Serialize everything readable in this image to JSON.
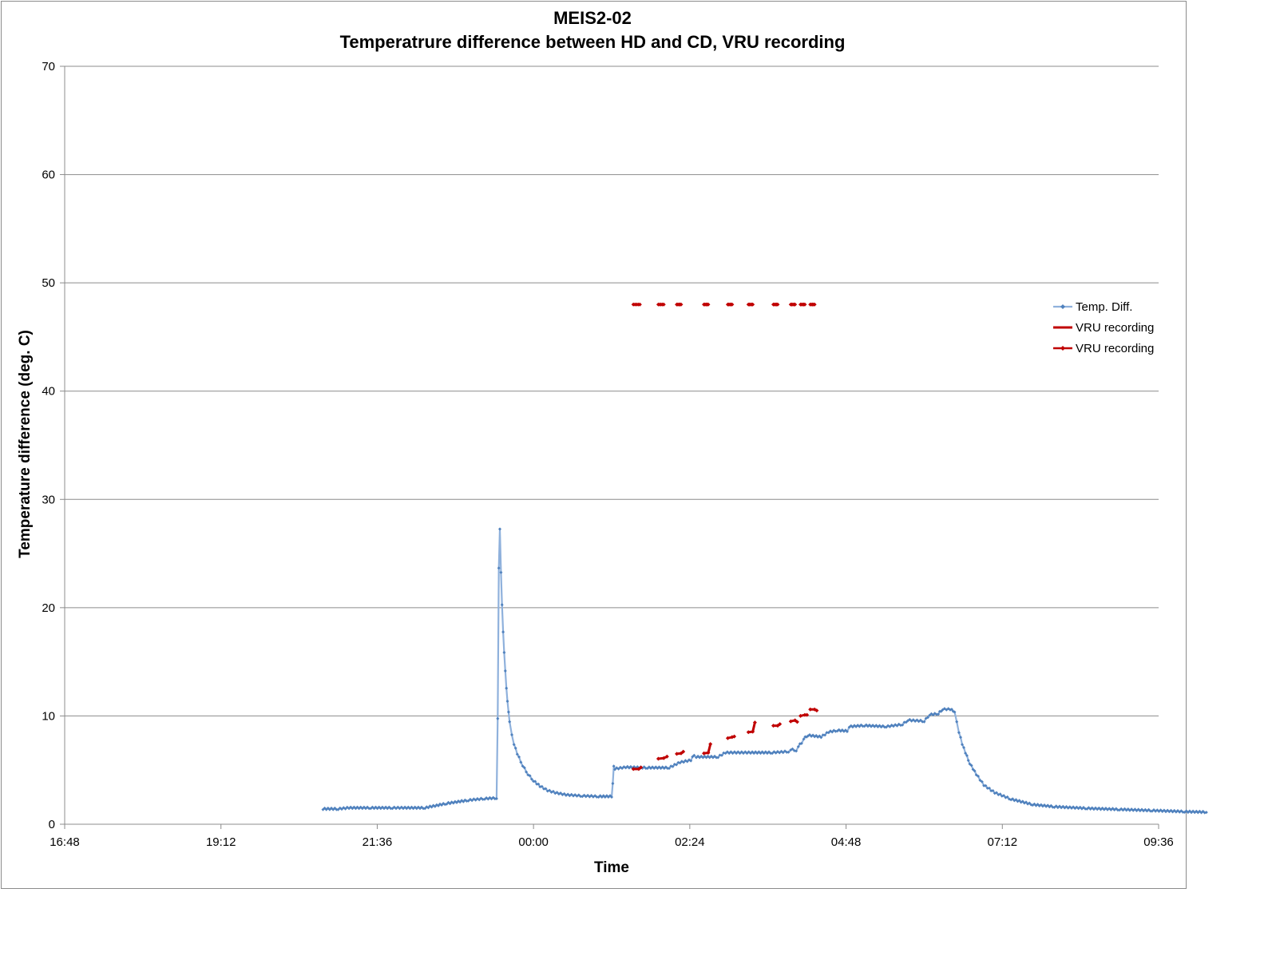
{
  "chart_data": {
    "type": "line",
    "title": "MEIS2-02",
    "subtitle": "Temperatrure difference between HD and CD, VRU recording",
    "xlabel": "Time",
    "ylabel": "Temperature difference (deg. C)",
    "x_tick_labels": [
      "16:48",
      "19:12",
      "21:36",
      "00:00",
      "02:24",
      "04:48",
      "07:12",
      "09:36"
    ],
    "y_tick_labels": [
      "0",
      "10",
      "20",
      "30",
      "40",
      "50",
      "60",
      "70"
    ],
    "xlim": [
      "16:48",
      "09:36 (+1 day)"
    ],
    "ylim": [
      0,
      70
    ],
    "grid": "horizontal",
    "legend_position": "right",
    "colors": {
      "temp": "#4f81bd",
      "temp_line": "#8fb1dc",
      "vru": "#c00000"
    },
    "series": [
      {
        "name": "Temp. Diff.",
        "kind": "line-with-markers",
        "points": [
          [
            "20:46",
            1.4
          ],
          [
            "21:00",
            1.4
          ],
          [
            "21:10",
            1.5
          ],
          [
            "21:30",
            1.5
          ],
          [
            "21:50",
            1.5
          ],
          [
            "22:00",
            1.5
          ],
          [
            "22:20",
            1.5
          ],
          [
            "22:40",
            1.9
          ],
          [
            "23:00",
            2.2
          ],
          [
            "23:15",
            2.35
          ],
          [
            "23:26",
            2.4
          ],
          [
            "23:27",
            9.8
          ],
          [
            "23:28",
            23.7
          ],
          [
            "23:29",
            27.3
          ],
          [
            "23:30",
            23.3
          ],
          [
            "23:31",
            20.3
          ],
          [
            "23:32",
            17.8
          ],
          [
            "23:33",
            15.9
          ],
          [
            "23:34",
            14.2
          ],
          [
            "23:35",
            12.6
          ],
          [
            "23:36",
            11.4
          ],
          [
            "23:37",
            10.4
          ],
          [
            "23:38",
            9.5
          ],
          [
            "23:40",
            8.3
          ],
          [
            "23:42",
            7.4
          ],
          [
            "23:45",
            6.5
          ],
          [
            "23:50",
            5.4
          ],
          [
            "23:55",
            4.6
          ],
          [
            "00:00",
            4.0
          ],
          [
            "00:06",
            3.5
          ],
          [
            "00:13",
            3.1
          ],
          [
            "00:20",
            2.9
          ],
          [
            "00:30",
            2.7
          ],
          [
            "00:45",
            2.6
          ],
          [
            "01:00",
            2.55
          ],
          [
            "01:12",
            2.55
          ],
          [
            "01:13",
            3.8
          ],
          [
            "01:14",
            5.4
          ],
          [
            "01:15",
            5.1
          ],
          [
            "01:25",
            5.25
          ],
          [
            "01:45",
            5.2
          ],
          [
            "02:05",
            5.2
          ],
          [
            "02:15",
            5.7
          ],
          [
            "02:25",
            5.9
          ],
          [
            "02:28",
            6.4
          ],
          [
            "02:30",
            6.2
          ],
          [
            "02:50",
            6.2
          ],
          [
            "02:57",
            6.6
          ],
          [
            "03:20",
            6.6
          ],
          [
            "03:40",
            6.6
          ],
          [
            "03:55",
            6.7
          ],
          [
            "03:57",
            6.9
          ],
          [
            "04:02",
            6.8
          ],
          [
            "04:04",
            7.2
          ],
          [
            "04:07",
            7.5
          ],
          [
            "04:09",
            7.9
          ],
          [
            "04:13",
            8.2
          ],
          [
            "04:25",
            8.05
          ],
          [
            "04:32",
            8.5
          ],
          [
            "04:40",
            8.65
          ],
          [
            "04:49",
            8.6
          ],
          [
            "04:51",
            9.0
          ],
          [
            "05:05",
            9.1
          ],
          [
            "05:25",
            9.0
          ],
          [
            "05:40",
            9.2
          ],
          [
            "05:45",
            9.6
          ],
          [
            "06:00",
            9.5
          ],
          [
            "06:05",
            10.1
          ],
          [
            "06:13",
            10.2
          ],
          [
            "06:17",
            10.6
          ],
          [
            "06:24",
            10.6
          ],
          [
            "06:28",
            10.4
          ],
          [
            "06:30",
            9.5
          ],
          [
            "06:32",
            8.5
          ],
          [
            "06:35",
            7.4
          ],
          [
            "06:38",
            6.6
          ],
          [
            "06:42",
            5.6
          ],
          [
            "06:48",
            4.6
          ],
          [
            "06:55",
            3.6
          ],
          [
            "07:05",
            2.9
          ],
          [
            "07:20",
            2.3
          ],
          [
            "07:40",
            1.8
          ],
          [
            "08:00",
            1.6
          ],
          [
            "08:30",
            1.45
          ],
          [
            "09:00",
            1.35
          ],
          [
            "09:30",
            1.25
          ],
          [
            "10:00",
            1.15
          ],
          [
            "10:20",
            1.1
          ]
        ]
      },
      {
        "name": "VRU recording",
        "kind": "line",
        "segments": [
          [
            [
              "01:32",
              5.1
            ],
            [
              "01:37",
              5.1
            ],
            [
              "01:39",
              5.25
            ]
          ],
          [
            [
              "01:55",
              6.05
            ],
            [
              "02:00",
              6.1
            ],
            [
              "02:03",
              6.25
            ]
          ],
          [
            [
              "02:12",
              6.5
            ],
            [
              "02:16",
              6.55
            ],
            [
              "02:18",
              6.7
            ]
          ],
          [
            [
              "02:37",
              6.55
            ],
            [
              "02:41",
              6.6
            ],
            [
              "02:43",
              7.4
            ]
          ],
          [
            [
              "02:59",
              7.95
            ],
            [
              "03:03",
              8.05
            ],
            [
              "03:05",
              8.1
            ]
          ],
          [
            [
              "03:18",
              8.5
            ],
            [
              "03:22",
              8.55
            ],
            [
              "03:24",
              9.4
            ]
          ],
          [
            [
              "03:41",
              9.1
            ],
            [
              "03:45",
              9.1
            ],
            [
              "03:47",
              9.25
            ]
          ],
          [
            [
              "03:57",
              9.5
            ],
            [
              "04:01",
              9.6
            ],
            [
              "04:03",
              9.45
            ]
          ],
          [
            [
              "04:06",
              10.0
            ],
            [
              "04:10",
              10.1
            ],
            [
              "04:12",
              10.1
            ]
          ],
          [
            [
              "04:15",
              10.6
            ],
            [
              "04:19",
              10.6
            ],
            [
              "04:21",
              10.5
            ]
          ]
        ]
      },
      {
        "name": "VRU recording",
        "kind": "line-with-markers",
        "y": 48,
        "segments": [
          [
            "01:32",
            "01:38"
          ],
          [
            "01:55",
            "02:00"
          ],
          [
            "02:12",
            "02:16"
          ],
          [
            "02:37",
            "02:41"
          ],
          [
            "02:59",
            "03:03"
          ],
          [
            "03:18",
            "03:22"
          ],
          [
            "03:41",
            "03:45"
          ],
          [
            "03:57",
            "04:01"
          ],
          [
            "04:06",
            "04:10"
          ],
          [
            "04:15",
            "04:19"
          ]
        ]
      }
    ]
  }
}
